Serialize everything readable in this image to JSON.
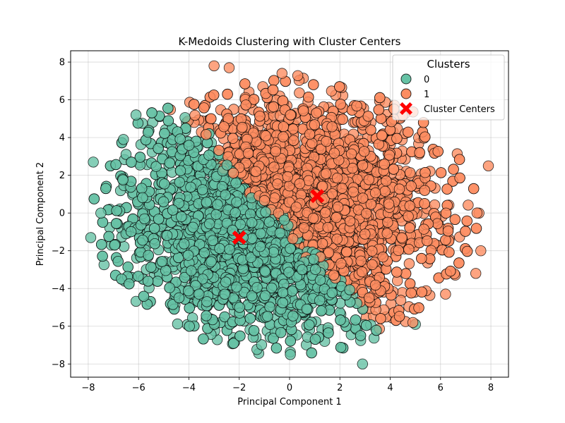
{
  "chart_data": {
    "type": "scatter",
    "title": "K-Medoids Clustering with Cluster Centers",
    "xlabel": "Principal Component 1",
    "ylabel": "Principal Component 2",
    "xlim": [
      -8.7,
      8.7
    ],
    "ylim": [
      -8.7,
      8.6
    ],
    "xticks": [
      -8,
      -6,
      -4,
      -2,
      0,
      2,
      4,
      6,
      8
    ],
    "yticks": [
      -8,
      -6,
      -4,
      -2,
      0,
      2,
      4,
      6,
      8
    ],
    "grid": true,
    "legend": {
      "title": "Clusters",
      "placement": "top-right",
      "entries": [
        "0",
        "1",
        "Cluster Centers"
      ]
    },
    "series": [
      {
        "name": "0",
        "color": "#66c2a5",
        "approx_count": 2500,
        "center_estimate": [
          -2.0,
          -1.3
        ],
        "spread_estimate": [
          2.4,
          2.9
        ],
        "notable_points": [
          [
            -7.9,
            -1.3
          ],
          [
            -7.8,
            2.7
          ],
          [
            -7.5,
            0.0
          ],
          [
            -6.6,
            3.9
          ],
          [
            -6.1,
            5.2
          ],
          [
            2.9,
            -8.0
          ],
          [
            5.0,
            -5.9
          ],
          [
            0.5,
            -3.0
          ]
        ]
      },
      {
        "name": "1",
        "color": "#fc8d62",
        "approx_count": 2500,
        "center_estimate": [
          1.1,
          0.9
        ],
        "spread_estimate": [
          2.6,
          2.9
        ],
        "notable_points": [
          [
            7.9,
            2.5
          ],
          [
            7.6,
            -2.0
          ],
          [
            7.4,
            -3.2
          ],
          [
            -0.3,
            7.4
          ],
          [
            -3.0,
            7.8
          ],
          [
            -2.4,
            7.7
          ],
          [
            6.2,
            -4.3
          ],
          [
            4.9,
            -5.8
          ]
        ]
      }
    ],
    "cluster_centers": {
      "name": "Cluster Centers",
      "color": "#ff0000",
      "marker": "X",
      "points": [
        {
          "x": -2.0,
          "y": -1.3
        },
        {
          "x": 1.1,
          "y": 0.9
        }
      ]
    }
  }
}
